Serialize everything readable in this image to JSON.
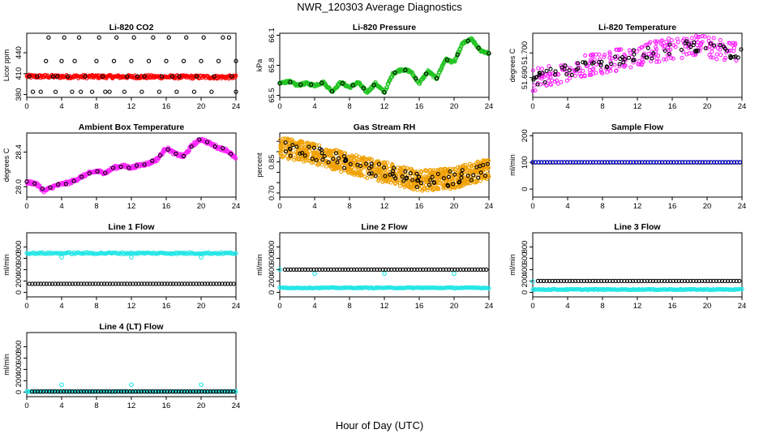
{
  "page": {
    "title": "NWR_120303  Average Diagnostics",
    "bottom_label": "Hour of Day (UTC)"
  },
  "colors": {
    "axis": "#000000",
    "black_series": "#000000",
    "red": "#ff0000",
    "green": "#22c422",
    "magenta": "#ff22ff",
    "orange": "#f0a000",
    "blue": "#0000cc",
    "cyan": "#22e6e6"
  },
  "chart_data": [
    {
      "type": "scatter",
      "title": "Li-820 CO2",
      "ylabel": "Licor ppm",
      "xlim": [
        0,
        24
      ],
      "xticks": [
        0,
        4,
        8,
        12,
        16,
        20,
        24
      ],
      "ylim": [
        376,
        468
      ],
      "yticks": [
        380,
        410,
        440
      ],
      "series": [
        {
          "color": "red",
          "kind": "band",
          "x": [
            0,
            24
          ],
          "y": [
            406,
            405
          ],
          "spread": 2.5
        },
        {
          "color": "black",
          "kind": "points",
          "x": [
            0.3,
            0.7,
            1.2,
            1.6,
            2.2,
            2.5,
            3.0,
            3.3,
            3.5,
            4.0,
            4.3,
            4.7,
            5.2,
            5.5,
            6.0,
            6.2,
            6.7,
            7.5,
            8.0,
            8.3,
            8.7,
            9.0,
            9.5,
            10.0,
            10.3,
            11.2,
            11.5,
            12.0,
            12.3,
            12.7,
            13.2,
            13.5,
            14.0,
            14.5,
            15.2,
            15.5,
            16.0,
            16.3,
            16.7,
            17.2,
            17.5,
            18.0,
            18.3,
            19.2,
            19.5,
            20.0,
            20.3,
            21.2,
            21.5,
            22.0,
            22.5,
            23.2,
            23.5,
            24.0,
            24.0
          ],
          "y": [
            406,
            384,
            406,
            384,
            428,
            462,
            406,
            384,
            406,
            428,
            462,
            406,
            384,
            428,
            462,
            384,
            406,
            384,
            428,
            462,
            406,
            384,
            384,
            428,
            462,
            384,
            406,
            428,
            462,
            406,
            384,
            406,
            428,
            462,
            384,
            406,
            428,
            462,
            406,
            384,
            406,
            428,
            462,
            384,
            406,
            428,
            462,
            384,
            406,
            428,
            462,
            462,
            406,
            428,
            384
          ]
        }
      ]
    },
    {
      "type": "scatter",
      "title": "Li-820 Pressure",
      "ylabel": "kPa",
      "xlim": [
        0,
        24
      ],
      "xticks": [
        0,
        4,
        8,
        12,
        16,
        20,
        24
      ],
      "ylim": [
        65.48,
        66.12
      ],
      "yticks": [
        65.5,
        65.8,
        66.1
      ],
      "series": [
        {
          "color": "green",
          "kind": "curve",
          "spread": 0.012,
          "x": [
            0,
            1,
            2,
            3,
            4,
            5,
            6,
            7,
            8,
            9,
            10,
            11,
            12,
            13,
            14,
            15,
            16,
            17,
            18,
            19,
            20,
            21,
            22,
            23,
            24
          ],
          "y": [
            65.62,
            65.64,
            65.6,
            65.62,
            65.6,
            65.63,
            65.54,
            65.63,
            65.58,
            65.63,
            65.53,
            65.62,
            65.53,
            65.72,
            65.76,
            65.74,
            65.62,
            65.74,
            65.67,
            65.86,
            65.83,
            66.02,
            66.06,
            65.95,
            65.92
          ]
        },
        {
          "color": "black",
          "kind": "curve_points",
          "spread": 0,
          "step": 1.2,
          "x": [
            0,
            1,
            2,
            3,
            4,
            5,
            6,
            7,
            8,
            9,
            10,
            11,
            12,
            13,
            14,
            15,
            16,
            17,
            18,
            19,
            20,
            21,
            22,
            23,
            24
          ],
          "y": [
            65.62,
            65.64,
            65.6,
            65.62,
            65.6,
            65.63,
            65.54,
            65.63,
            65.58,
            65.63,
            65.53,
            65.62,
            65.53,
            65.72,
            65.76,
            65.74,
            65.62,
            65.74,
            65.67,
            65.86,
            65.83,
            66.02,
            66.06,
            65.95,
            65.92
          ]
        }
      ]
    },
    {
      "type": "scatter",
      "title": "Li-820 Temperature",
      "ylabel": "degrees C",
      "xlim": [
        0,
        24
      ],
      "xticks": [
        0,
        4,
        8,
        12,
        16,
        20,
        24
      ],
      "ylim": [
        51.682,
        51.708
      ],
      "yticks": [
        51.69,
        51.7
      ],
      "ytick_labels": [
        "51.690",
        "51.700"
      ],
      "series": [
        {
          "color": "magenta",
          "kind": "cloud",
          "spread": 0.0045,
          "n": 260,
          "x": [
            0,
            4,
            8,
            12,
            16,
            20,
            24
          ],
          "y": [
            51.689,
            51.693,
            51.696,
            51.699,
            51.702,
            51.703,
            51.699
          ]
        },
        {
          "color": "black",
          "kind": "cloud",
          "spread": 0.0025,
          "n": 80,
          "x": [
            0,
            4,
            8,
            12,
            16,
            20,
            24
          ],
          "y": [
            51.689,
            51.693,
            51.696,
            51.699,
            51.702,
            51.703,
            51.699
          ]
        }
      ]
    },
    {
      "type": "scatter",
      "title": "Ambient Box Temperature",
      "ylabel": "degrees C",
      "xlim": [
        0,
        24
      ],
      "xticks": [
        0,
        4,
        8,
        12,
        16,
        20,
        24
      ],
      "ylim": [
        27.88,
        28.62
      ],
      "yticks": [
        28.0,
        28.4
      ],
      "ytick_labels": [
        "28.0",
        "28.4"
      ],
      "series": [
        {
          "color": "magenta",
          "kind": "curve",
          "spread": 0.018,
          "x": [
            0,
            1,
            2,
            3,
            4,
            5,
            6,
            7,
            8,
            9,
            10,
            11,
            12,
            13,
            14,
            15,
            16,
            17,
            18,
            19,
            20,
            21,
            22,
            23,
            24
          ],
          "y": [
            28.05,
            28.04,
            27.95,
            28.0,
            28.03,
            28.05,
            28.1,
            28.15,
            28.18,
            28.16,
            28.22,
            28.24,
            28.22,
            28.25,
            28.27,
            28.32,
            28.45,
            28.38,
            28.35,
            28.48,
            28.55,
            28.5,
            28.45,
            28.42,
            28.32
          ]
        },
        {
          "color": "black",
          "kind": "curve_points",
          "spread": 0.01,
          "step": 0.9,
          "x": [
            0,
            1,
            2,
            3,
            4,
            5,
            6,
            7,
            8,
            9,
            10,
            11,
            12,
            13,
            14,
            15,
            16,
            17,
            18,
            19,
            20,
            21,
            22,
            23,
            24
          ],
          "y": [
            28.05,
            28.04,
            27.95,
            28.0,
            28.03,
            28.05,
            28.1,
            28.15,
            28.18,
            28.16,
            28.22,
            28.24,
            28.22,
            28.25,
            28.27,
            28.32,
            28.45,
            28.38,
            28.35,
            28.48,
            28.55,
            28.5,
            28.45,
            28.42,
            28.32
          ]
        }
      ]
    },
    {
      "type": "scatter",
      "title": "Gas Stream RH",
      "ylabel": "percent",
      "xlim": [
        0,
        24
      ],
      "xticks": [
        0,
        4,
        8,
        12,
        16,
        20,
        24
      ],
      "ylim": [
        0.68,
        0.99
      ],
      "yticks": [
        0.7,
        0.75,
        0.8,
        0.85,
        0.9,
        0.95
      ],
      "ytick_labels": [
        "0.70",
        "",
        "",
        "0.85",
        "",
        ""
      ],
      "series": [
        {
          "color": "orange",
          "kind": "cloud",
          "spread": 0.05,
          "n": 900,
          "x": [
            0,
            4,
            8,
            12,
            16,
            20,
            24
          ],
          "y": [
            0.92,
            0.89,
            0.84,
            0.8,
            0.76,
            0.77,
            0.82
          ]
        },
        {
          "color": "black",
          "kind": "cloud",
          "spread": 0.035,
          "n": 90,
          "x": [
            0,
            4,
            8,
            12,
            16,
            20,
            24
          ],
          "y": [
            0.92,
            0.89,
            0.84,
            0.8,
            0.76,
            0.77,
            0.82
          ]
        }
      ]
    },
    {
      "type": "scatter",
      "title": "Sample Flow",
      "ylabel": "ml/min",
      "xlim": [
        0,
        24
      ],
      "xticks": [
        0,
        4,
        8,
        12,
        16,
        20,
        24
      ],
      "ylim": [
        -30,
        210
      ],
      "yticks": [
        0,
        100,
        200
      ],
      "series": [
        {
          "color": "black",
          "kind": "line_points",
          "step": 0.33,
          "x": [
            0,
            24
          ],
          "y": [
            100,
            100
          ]
        },
        {
          "color": "blue",
          "kind": "line_points",
          "step": 0.33,
          "x": [
            0,
            24
          ],
          "y": [
            101,
            101
          ]
        }
      ]
    },
    {
      "type": "scatter",
      "title": "Line 1 Flow",
      "ylabel": "ml/min",
      "xlim": [
        0,
        24
      ],
      "xticks": [
        0,
        4,
        8,
        12,
        16,
        20,
        24
      ],
      "ylim": [
        -80,
        1050
      ],
      "yticks": [
        0,
        200,
        400,
        600,
        800
      ],
      "series": [
        {
          "color": "cyan",
          "kind": "line_points",
          "step": 0.15,
          "x": [
            0,
            24
          ],
          "y": [
            690,
            690
          ],
          "spread": 15,
          "outliers": [
            [
              4,
              620
            ],
            [
              12,
              620
            ],
            [
              20,
              620
            ]
          ]
        },
        {
          "color": "black",
          "kind": "line_points",
          "step": 0.33,
          "x": [
            0.3,
            24
          ],
          "y": [
            150,
            150
          ]
        }
      ]
    },
    {
      "type": "scatter",
      "title": "Line 2 Flow",
      "ylabel": "ml/min",
      "xlim": [
        0,
        24
      ],
      "xticks": [
        0,
        4,
        8,
        12,
        16,
        20,
        24
      ],
      "ylim": [
        -80,
        1050
      ],
      "yticks": [
        0,
        200,
        400,
        600,
        800
      ],
      "series": [
        {
          "color": "cyan",
          "kind": "line_points",
          "step": 0.15,
          "x": [
            0,
            24
          ],
          "y": [
            80,
            80
          ],
          "spread": 8,
          "outliers": [
            [
              0,
              400
            ],
            [
              4,
              330
            ],
            [
              12,
              330
            ],
            [
              20,
              330
            ]
          ]
        },
        {
          "color": "black",
          "kind": "line_points",
          "step": 0.33,
          "x": [
            0.6,
            24
          ],
          "y": [
            400,
            400
          ]
        }
      ]
    },
    {
      "type": "scatter",
      "title": "Line 3 Flow",
      "ylabel": "ml/min",
      "xlim": [
        0,
        24
      ],
      "xticks": [
        0,
        4,
        8,
        12,
        16,
        20,
        24
      ],
      "ylim": [
        -80,
        1050
      ],
      "yticks": [
        0,
        200,
        400,
        600,
        800
      ],
      "series": [
        {
          "color": "cyan",
          "kind": "line_points",
          "step": 0.15,
          "x": [
            0,
            24
          ],
          "y": [
            50,
            50
          ],
          "spread": 8,
          "outliers": [
            [
              0,
              190
            ]
          ]
        },
        {
          "color": "black",
          "kind": "line_points",
          "step": 0.33,
          "x": [
            0.6,
            24
          ],
          "y": [
            200,
            200
          ]
        }
      ]
    },
    {
      "type": "scatter",
      "title": "Line 4 (LT) Flow",
      "ylabel": "ml/min",
      "xlim": [
        0,
        24
      ],
      "xticks": [
        0,
        4,
        8,
        12,
        16,
        20,
        24
      ],
      "ylim": [
        -80,
        1050
      ],
      "yticks": [
        0,
        200,
        400,
        600,
        800
      ],
      "series": [
        {
          "color": "cyan",
          "kind": "line_points",
          "step": 0.15,
          "x": [
            0,
            24
          ],
          "y": [
            10,
            10
          ],
          "spread": 4,
          "outliers": [
            [
              4,
              130
            ],
            [
              12,
              130
            ],
            [
              20,
              130
            ]
          ]
        },
        {
          "color": "black",
          "kind": "line_points",
          "step": 0.33,
          "x": [
            0.6,
            24
          ],
          "y": [
            10,
            10
          ]
        }
      ]
    }
  ]
}
